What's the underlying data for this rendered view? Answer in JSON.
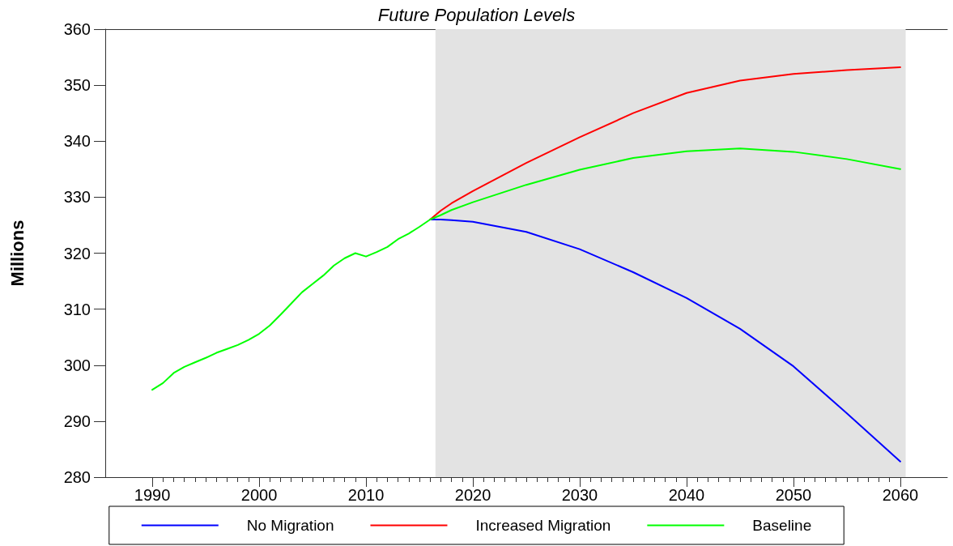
{
  "chart_data": {
    "type": "line",
    "title": "Future Population Levels",
    "ylabel": "Millions",
    "x": [
      1990,
      1991,
      1992,
      1993,
      1994,
      1995,
      1996,
      1997,
      1998,
      1999,
      2000,
      2001,
      2002,
      2003,
      2004,
      2005,
      2006,
      2007,
      2008,
      2009,
      2010,
      2011,
      2012,
      2013,
      2014,
      2015,
      2016,
      2017,
      2018,
      2020,
      2025,
      2030,
      2035,
      2040,
      2045,
      2050,
      2055,
      2060
    ],
    "series": [
      {
        "name": "No Migration",
        "color": "#0000ff",
        "values": [
          null,
          null,
          null,
          null,
          null,
          null,
          null,
          null,
          null,
          null,
          null,
          null,
          null,
          null,
          null,
          null,
          null,
          null,
          null,
          null,
          null,
          null,
          null,
          null,
          null,
          null,
          326.0,
          326.0,
          325.9,
          325.6,
          323.8,
          320.7,
          316.6,
          312.0,
          306.5,
          299.8,
          291.4,
          282.8
        ]
      },
      {
        "name": "Increased Migration",
        "color": "#ff0000",
        "values": [
          null,
          null,
          null,
          null,
          null,
          null,
          null,
          null,
          null,
          null,
          null,
          null,
          null,
          null,
          null,
          null,
          null,
          null,
          null,
          null,
          null,
          null,
          null,
          null,
          null,
          null,
          326.0,
          327.6,
          328.9,
          331.1,
          336.1,
          340.7,
          345.0,
          348.6,
          350.8,
          352.0,
          352.7,
          353.2
        ]
      },
      {
        "name": "Baseline",
        "color": "#00ff00",
        "values": [
          295.6,
          296.8,
          298.6,
          299.7,
          300.5,
          301.3,
          302.2,
          302.9,
          303.6,
          304.5,
          305.6,
          307.1,
          309.0,
          311.0,
          313.0,
          314.5,
          316.0,
          317.8,
          319.1,
          320.0,
          319.4,
          320.2,
          321.1,
          322.5,
          323.5,
          324.7,
          326.0,
          326.8,
          327.7,
          329.1,
          332.2,
          334.9,
          337.0,
          338.2,
          338.7,
          338.1,
          336.8,
          335.0
        ]
      }
    ],
    "xlim": [
      1985.6,
      2064.4
    ],
    "xticks": [
      1990,
      {
        "value": 1991,
        "label": null
      },
      {
        "value": 1992,
        "label": null
      },
      {
        "value": 1993,
        "label": null
      },
      {
        "value": 1994,
        "label": null
      },
      {
        "value": 1995,
        "label": null
      },
      {
        "value": 1996,
        "label": null
      },
      {
        "value": 1997,
        "label": null
      },
      {
        "value": 1998,
        "label": null
      },
      {
        "value": 1999,
        "label": null
      },
      2000,
      {
        "value": 2001,
        "label": null
      },
      {
        "value": 2002,
        "label": null
      },
      {
        "value": 2003,
        "label": null
      },
      {
        "value": 2004,
        "label": null
      },
      {
        "value": 2005,
        "label": null
      },
      {
        "value": 2006,
        "label": null
      },
      {
        "value": 2007,
        "label": null
      },
      {
        "value": 2008,
        "label": null
      },
      {
        "value": 2009,
        "label": null
      },
      2010,
      {
        "value": 2011,
        "label": null
      },
      {
        "value": 2012,
        "label": null
      },
      {
        "value": 2013,
        "label": null
      },
      {
        "value": 2014,
        "label": null
      },
      {
        "value": 2015,
        "label": null
      },
      {
        "value": 2016,
        "label": null
      },
      {
        "value": 2017,
        "label": null
      },
      {
        "value": 2018,
        "label": null
      },
      {
        "value": 2019,
        "label": null
      },
      2020,
      {
        "value": 2021,
        "label": null
      },
      {
        "value": 2022,
        "label": null
      },
      {
        "value": 2023,
        "label": null
      },
      {
        "value": 2024,
        "label": null
      },
      {
        "value": 2025,
        "label": null
      },
      {
        "value": 2026,
        "label": null
      },
      {
        "value": 2027,
        "label": null
      },
      {
        "value": 2028,
        "label": null
      },
      {
        "value": 2029,
        "label": null
      },
      2030,
      {
        "value": 2031,
        "label": null
      },
      {
        "value": 2032,
        "label": null
      },
      {
        "value": 2033,
        "label": null
      },
      {
        "value": 2034,
        "label": null
      },
      {
        "value": 2035,
        "label": null
      },
      {
        "value": 2036,
        "label": null
      },
      {
        "value": 2037,
        "label": null
      },
      {
        "value": 2038,
        "label": null
      },
      {
        "value": 2039,
        "label": null
      },
      2040,
      {
        "value": 2041,
        "label": null
      },
      {
        "value": 2042,
        "label": null
      },
      {
        "value": 2043,
        "label": null
      },
      {
        "value": 2044,
        "label": null
      },
      {
        "value": 2045,
        "label": null
      },
      {
        "value": 2046,
        "label": null
      },
      {
        "value": 2047,
        "label": null
      },
      {
        "value": 2048,
        "label": null
      },
      {
        "value": 2049,
        "label": null
      },
      2050,
      {
        "value": 2051,
        "label": null
      },
      {
        "value": 2052,
        "label": null
      },
      {
        "value": 2053,
        "label": null
      },
      {
        "value": 2054,
        "label": null
      },
      {
        "value": 2055,
        "label": null
      },
      {
        "value": 2056,
        "label": null
      },
      {
        "value": 2057,
        "label": null
      },
      {
        "value": 2058,
        "label": null
      },
      {
        "value": 2059,
        "label": null
      },
      2060
    ],
    "ylim": [
      280,
      360
    ],
    "yticks": [
      280,
      290,
      300,
      310,
      320,
      330,
      340,
      350,
      360
    ],
    "bands": [
      {
        "axis": "x",
        "from": 2016.5,
        "to": 2060.5,
        "color": "#e3e3e3"
      }
    ],
    "grid": false,
    "legend": "bottom",
    "marker": "none",
    "line_style": "solid"
  }
}
